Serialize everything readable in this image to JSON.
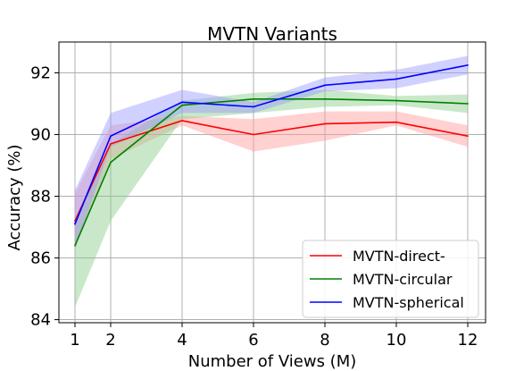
{
  "chart_data": {
    "type": "line",
    "title": "MVTN Variants",
    "xlabel": "Number of Views (M)",
    "ylabel": "Accuracy (%)",
    "x": [
      1,
      2,
      4,
      6,
      8,
      10,
      12
    ],
    "xticks": [
      1,
      2,
      4,
      6,
      8,
      10,
      12
    ],
    "yticks": [
      84,
      86,
      88,
      90,
      92
    ],
    "xlim": [
      0.55,
      12.5
    ],
    "ylim": [
      83.9,
      93.0
    ],
    "grid": true,
    "legend_position": "bottom-right",
    "series": [
      {
        "name": "MVTN-direct-",
        "color": "#ff0000",
        "band_color": "#ff9999",
        "values": [
          87.2,
          89.7,
          90.45,
          90.0,
          90.35,
          90.4,
          89.95
        ],
        "lower": [
          86.3,
          89.2,
          90.3,
          89.45,
          89.8,
          90.3,
          89.6
        ],
        "upper": [
          88.1,
          90.3,
          90.6,
          90.5,
          90.75,
          90.75,
          90.3
        ]
      },
      {
        "name": "MVTN-circular",
        "color": "#008000",
        "band_color": "#88cc88",
        "values": [
          86.4,
          89.1,
          90.95,
          91.15,
          91.15,
          91.1,
          91.0
        ],
        "lower": [
          84.4,
          87.2,
          90.5,
          90.7,
          90.9,
          90.95,
          90.7
        ],
        "upper": [
          87.2,
          89.7,
          91.1,
          91.35,
          91.45,
          91.25,
          91.3
        ]
      },
      {
        "name": "MVTN-spherical",
        "color": "#0000ff",
        "band_color": "#9999ff",
        "values": [
          87.1,
          89.95,
          91.05,
          90.9,
          91.6,
          91.8,
          92.25
        ],
        "lower": [
          86.3,
          89.6,
          90.7,
          90.7,
          91.4,
          91.5,
          91.95
        ],
        "upper": [
          88.2,
          90.7,
          91.45,
          91.05,
          91.85,
          92.1,
          92.55
        ]
      }
    ]
  }
}
